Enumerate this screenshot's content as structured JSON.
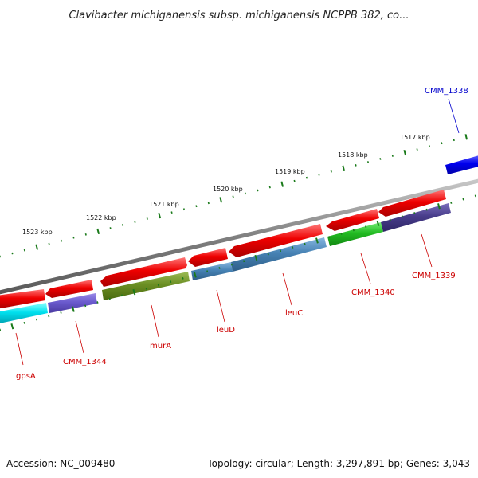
{
  "title": "Clavibacter michiganensis subsp. michiganensis NCPPB 382, co...",
  "footer": {
    "accession": "Accession: NC_009480",
    "topology": "Topology: circular; Length: 3,297,891 bp; Genes: 3,043"
  },
  "ruler_labels": [
    "1523 kbp",
    "1522 kbp",
    "1521 kbp",
    "1520 kbp",
    "1519 kbp",
    "1518 kbp",
    "1517 kbp"
  ],
  "gene_labels": [
    {
      "name": "gpsA",
      "color": "#cc0000"
    },
    {
      "name": "CMM_1344",
      "color": "#cc0000"
    },
    {
      "name": "murA",
      "color": "#cc0000"
    },
    {
      "name": "leuD",
      "color": "#cc0000"
    },
    {
      "name": "leuC",
      "color": "#cc0000"
    },
    {
      "name": "CMM_1340",
      "color": "#cc0000"
    },
    {
      "name": "CMM_1339",
      "color": "#cc0000"
    },
    {
      "name": "CMM_1338",
      "color": "#0000cc"
    }
  ],
  "colors": {
    "cds": "#ee0000",
    "backbone": "#808080",
    "tick": "#1a7a1a",
    "cyan": "#00e0ee",
    "slateblue": "#6a5acd",
    "olive": "#6b8e23",
    "steelblue": "#4682b4",
    "green": "#22bb22",
    "darkslateblue": "#483d8b",
    "blue": "#0000ee"
  }
}
